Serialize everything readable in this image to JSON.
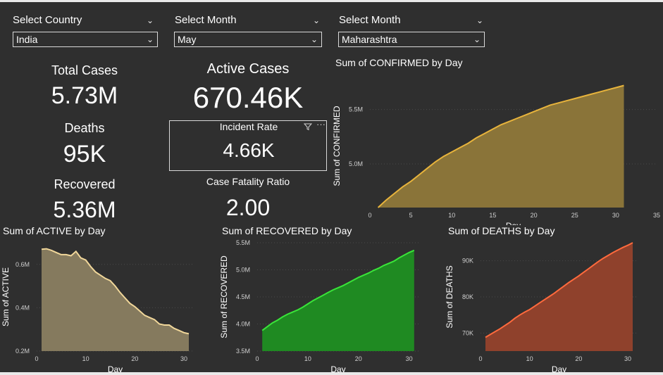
{
  "slicers": [
    {
      "title": "Select Country",
      "value": "India"
    },
    {
      "title": "Select Month",
      "value": "May"
    },
    {
      "title": "Select Month",
      "value": "Maharashtra"
    }
  ],
  "kpis": {
    "total_cases": {
      "label": "Total Cases",
      "value": "5.73M"
    },
    "deaths": {
      "label": "Deaths",
      "value": "95K"
    },
    "recovered": {
      "label": "Recovered",
      "value": "5.36M"
    },
    "active_cases": {
      "label": "Active Cases",
      "value": "670.46K"
    },
    "incident_rate": {
      "label": "Incident Rate",
      "value": "4.66K"
    },
    "case_fatality": {
      "label": "Case Fatality Ratio",
      "value": "2.00"
    }
  },
  "icons": {
    "filter": "filter-icon",
    "more": "more-options-icon",
    "chevron": "chevron-down-icon"
  },
  "chart_data": [
    {
      "id": "confirmed",
      "type": "area",
      "title": "Sum of CONFIRMED by Day",
      "xlabel": "Day",
      "ylabel": "Sum of CONFIRMED",
      "xlim": [
        0,
        35
      ],
      "ylim": [
        4.6,
        5.73
      ],
      "xticks": [
        0,
        5,
        10,
        15,
        20,
        25,
        30,
        35
      ],
      "yticks": [
        5.0,
        5.5
      ],
      "ytick_labels": [
        "5.0M",
        "5.5M"
      ],
      "color": "#e8b43c",
      "fill": "#8a7439",
      "x": [
        1,
        2,
        3,
        4,
        5,
        6,
        7,
        8,
        9,
        10,
        11,
        12,
        13,
        14,
        15,
        16,
        17,
        18,
        19,
        20,
        21,
        22,
        23,
        24,
        25,
        26,
        27,
        28,
        29,
        30,
        31
      ],
      "y": [
        4.6,
        4.67,
        4.73,
        4.79,
        4.84,
        4.9,
        4.96,
        5.02,
        5.07,
        5.11,
        5.15,
        5.19,
        5.24,
        5.28,
        5.32,
        5.36,
        5.39,
        5.42,
        5.45,
        5.48,
        5.51,
        5.54,
        5.56,
        5.58,
        5.6,
        5.62,
        5.64,
        5.66,
        5.68,
        5.7,
        5.72
      ]
    },
    {
      "id": "active",
      "type": "area",
      "title": "Sum of ACTIVE by Day",
      "xlabel": "Day",
      "ylabel": "Sum of ACTIVE",
      "xlim": [
        0,
        32
      ],
      "ylim": [
        0.2,
        0.7
      ],
      "xticks": [
        0,
        10,
        20,
        30
      ],
      "yticks": [
        0.2,
        0.4,
        0.6
      ],
      "ytick_labels": [
        "0.2M",
        "0.4M",
        "0.6M"
      ],
      "color": "#f1d79a",
      "fill": "#857a5e",
      "x": [
        1,
        2,
        3,
        4,
        5,
        6,
        7,
        8,
        9,
        10,
        11,
        12,
        13,
        14,
        15,
        16,
        17,
        18,
        19,
        20,
        21,
        22,
        23,
        24,
        25,
        26,
        27,
        28,
        29,
        30,
        31
      ],
      "y": [
        0.67,
        0.672,
        0.665,
        0.655,
        0.645,
        0.645,
        0.64,
        0.66,
        0.63,
        0.62,
        0.59,
        0.565,
        0.55,
        0.535,
        0.525,
        0.5,
        0.47,
        0.445,
        0.42,
        0.405,
        0.385,
        0.365,
        0.355,
        0.345,
        0.325,
        0.32,
        0.32,
        0.305,
        0.295,
        0.285,
        0.28
      ]
    },
    {
      "id": "recovered",
      "type": "area",
      "title": "Sum of RECOVERED by Day",
      "xlabel": "Day",
      "ylabel": "Sum of RECOVERED",
      "xlim": [
        0,
        32
      ],
      "ylim": [
        3.5,
        5.5
      ],
      "xticks": [
        0,
        10,
        20,
        30
      ],
      "yticks": [
        3.5,
        4.0,
        4.5,
        5.0,
        5.5
      ],
      "ytick_labels": [
        "3.5M",
        "4.0M",
        "4.5M",
        "5.0M",
        "5.5M"
      ],
      "color": "#39e539",
      "fill": "#1f8a22",
      "x": [
        1,
        2,
        3,
        4,
        5,
        6,
        7,
        8,
        9,
        10,
        11,
        12,
        13,
        14,
        15,
        16,
        17,
        18,
        19,
        20,
        21,
        22,
        23,
        24,
        25,
        26,
        27,
        28,
        29,
        30,
        31
      ],
      "y": [
        3.88,
        3.95,
        4.02,
        4.07,
        4.13,
        4.18,
        4.22,
        4.26,
        4.31,
        4.37,
        4.43,
        4.48,
        4.53,
        4.58,
        4.63,
        4.67,
        4.71,
        4.76,
        4.81,
        4.86,
        4.9,
        4.94,
        4.99,
        5.03,
        5.08,
        5.12,
        5.16,
        5.22,
        5.27,
        5.32,
        5.36
      ]
    },
    {
      "id": "deaths",
      "type": "area",
      "title": "Sum of DEATHS by Day",
      "xlabel": "Day",
      "ylabel": "Sum of DEATHS",
      "xlim": [
        0,
        32
      ],
      "ylim": [
        65,
        95
      ],
      "xticks": [
        0,
        10,
        20,
        30
      ],
      "yticks": [
        70,
        80,
        90
      ],
      "ytick_labels": [
        "70K",
        "80K",
        "90K"
      ],
      "color": "#ff6a3d",
      "fill": "#8f412c",
      "x": [
        1,
        2,
        3,
        4,
        5,
        6,
        7,
        8,
        9,
        10,
        11,
        12,
        13,
        14,
        15,
        16,
        17,
        18,
        19,
        20,
        21,
        22,
        23,
        24,
        25,
        26,
        27,
        28,
        29,
        30,
        31
      ],
      "y": [
        68.8,
        69.6,
        70.4,
        71.2,
        72.1,
        73.0,
        74.1,
        75.0,
        75.8,
        76.5,
        77.4,
        78.3,
        79.2,
        80.1,
        81.0,
        82.0,
        83.0,
        84.0,
        84.9,
        85.8,
        86.8,
        87.8,
        88.8,
        89.8,
        90.7,
        91.5,
        92.3,
        93.0,
        93.7,
        94.3,
        95.0
      ]
    }
  ]
}
